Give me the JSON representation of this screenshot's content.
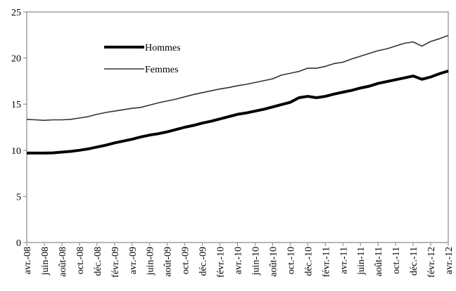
{
  "chart_data": {
    "type": "line",
    "categories": [
      "avr.-08",
      null,
      "juin-08",
      null,
      "août-08",
      null,
      "oct.-08",
      null,
      "déc.-08",
      null,
      "févr.-09",
      null,
      "avr.-09",
      null,
      "juin-09",
      null,
      "août-09",
      null,
      "oct.-09",
      null,
      "déc.-09",
      null,
      "févr.-10",
      null,
      "avr.-10",
      null,
      "juin-10",
      null,
      "août-10",
      null,
      "oct.-10",
      null,
      "déc.-10",
      null,
      "févr.-11",
      null,
      "avr.-11",
      null,
      "juin-11",
      null,
      "août-11",
      null,
      "oct.-11",
      null,
      "déc.-11",
      null,
      "févr.-12",
      null,
      "avr.-12"
    ],
    "series": [
      {
        "name": "Hommes",
        "color": "#000000",
        "values": [
          9.7,
          9.7,
          9.7,
          9.72,
          9.8,
          9.88,
          10.0,
          10.15,
          10.35,
          10.55,
          10.8,
          11.0,
          11.2,
          11.45,
          11.65,
          11.8,
          12.0,
          12.25,
          12.5,
          12.7,
          12.95,
          13.15,
          13.4,
          13.65,
          13.9,
          14.05,
          14.25,
          14.45,
          14.7,
          14.95,
          15.2,
          15.7,
          15.85,
          15.7,
          15.85,
          16.1,
          16.3,
          16.5,
          16.75,
          16.95,
          17.25,
          17.45,
          17.65,
          17.85,
          18.05,
          17.7,
          17.95,
          18.3,
          18.6
        ]
      },
      {
        "name": "Femmes",
        "color": "#333333",
        "values": [
          13.35,
          13.3,
          13.25,
          13.3,
          13.3,
          13.35,
          13.5,
          13.65,
          13.9,
          14.1,
          14.25,
          14.4,
          14.55,
          14.65,
          14.9,
          15.15,
          15.35,
          15.55,
          15.8,
          16.05,
          16.25,
          16.45,
          16.65,
          16.8,
          17.0,
          17.15,
          17.35,
          17.55,
          17.75,
          18.15,
          18.35,
          18.55,
          18.9,
          18.9,
          19.1,
          19.4,
          19.55,
          19.9,
          20.2,
          20.5,
          20.8,
          21.0,
          21.3,
          21.6,
          21.75,
          21.3,
          21.8,
          22.1,
          22.45
        ]
      }
    ],
    "ylim": [
      0,
      25
    ],
    "yticks": [
      0,
      5,
      10,
      15,
      20,
      25
    ],
    "grid": false
  }
}
